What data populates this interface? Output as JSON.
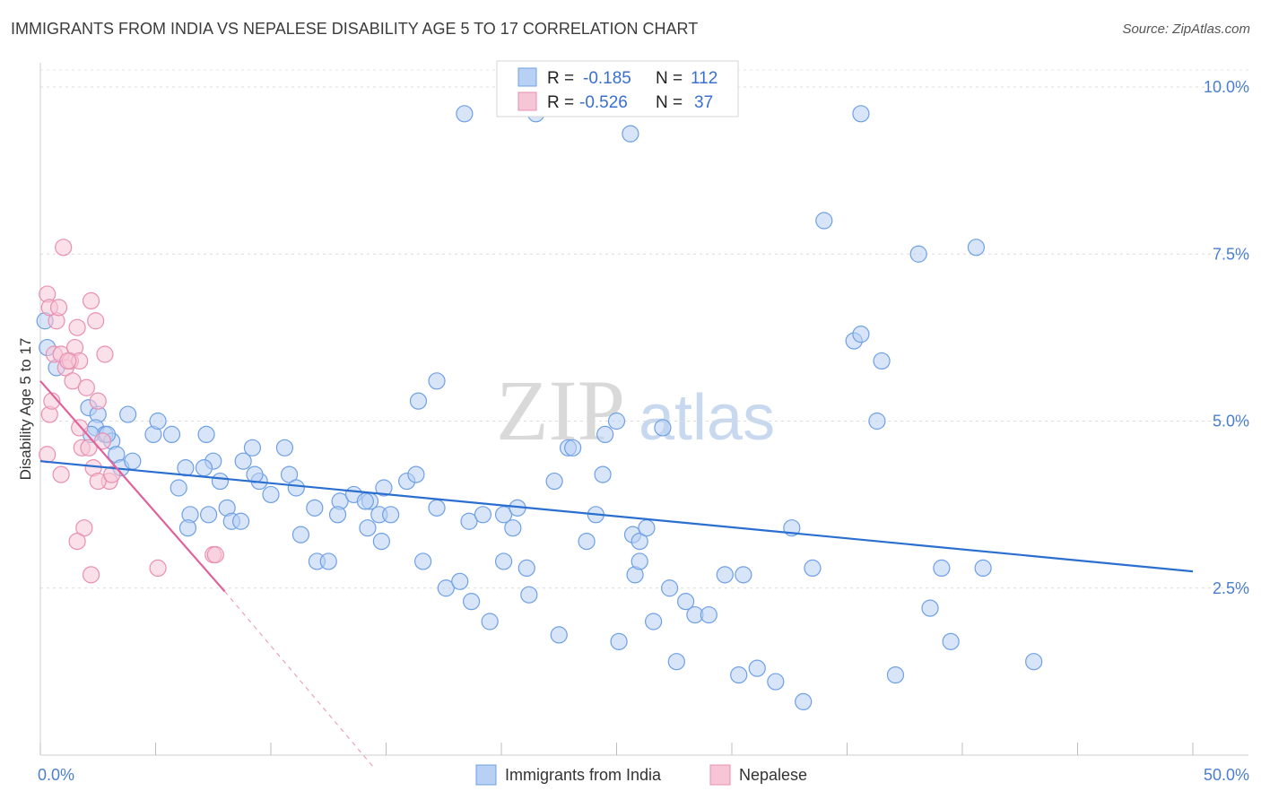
{
  "title": "IMMIGRANTS FROM INDIA VS NEPALESE DISABILITY AGE 5 TO 17 CORRELATION CHART",
  "source": "Source: ZipAtlas.com",
  "watermark": {
    "zip": "ZIP",
    "atlas": "atlas"
  },
  "chart_data": {
    "type": "scatter",
    "title": "IMMIGRANTS FROM INDIA VS NEPALESE DISABILITY AGE 5 TO 17 CORRELATION CHART",
    "xlabel": "",
    "ylabel": "Disability Age 5 to 17",
    "xlim": [
      0,
      50
    ],
    "ylim": [
      0,
      10.5
    ],
    "x_tick_labels": [
      "0.0%",
      "50.0%"
    ],
    "y_ticks": [
      2.5,
      5.0,
      7.5,
      10.0
    ],
    "y_tick_labels": [
      "2.5%",
      "5.0%",
      "7.5%",
      "10.0%"
    ],
    "legend": [
      {
        "r_label": "R =",
        "r_value": "-0.185",
        "n_label": "N =",
        "n_value": "112"
      },
      {
        "r_label": "R =",
        "r_value": "-0.526",
        "n_label": "N =",
        "n_value": "37"
      }
    ],
    "series": [
      {
        "name": "Immigrants from India",
        "color": "#6ea0e6",
        "fill": "#b8d0f4",
        "line_color": "#2a6fd0",
        "trend": {
          "x0": 0,
          "y0": 4.4,
          "x1": 50,
          "y1": 2.75
        },
        "points": [
          [
            0.2,
            6.5
          ],
          [
            0.3,
            6.1
          ],
          [
            0.7,
            5.8
          ],
          [
            2.1,
            5.2
          ],
          [
            2.5,
            5.1
          ],
          [
            2.4,
            4.9
          ],
          [
            2.8,
            4.8
          ],
          [
            3.1,
            4.7
          ],
          [
            2.9,
            4.8
          ],
          [
            2.2,
            4.8
          ],
          [
            3.3,
            4.5
          ],
          [
            3.5,
            4.3
          ],
          [
            4.0,
            4.4
          ],
          [
            4.9,
            4.8
          ],
          [
            5.1,
            5.0
          ],
          [
            3.8,
            5.1
          ],
          [
            5.7,
            4.8
          ],
          [
            6.0,
            4.0
          ],
          [
            6.5,
            3.6
          ],
          [
            6.3,
            4.3
          ],
          [
            7.2,
            4.8
          ],
          [
            7.3,
            3.6
          ],
          [
            6.4,
            3.4
          ],
          [
            7.5,
            4.4
          ],
          [
            7.8,
            4.1
          ],
          [
            7.1,
            4.3
          ],
          [
            8.1,
            3.7
          ],
          [
            8.3,
            3.5
          ],
          [
            8.8,
            4.4
          ],
          [
            8.7,
            3.5
          ],
          [
            9.2,
            4.6
          ],
          [
            9.5,
            4.1
          ],
          [
            9.3,
            4.2
          ],
          [
            10.0,
            3.9
          ],
          [
            10.6,
            4.6
          ],
          [
            10.8,
            4.2
          ],
          [
            11.1,
            4.0
          ],
          [
            11.3,
            3.3
          ],
          [
            11.9,
            3.7
          ],
          [
            12.0,
            2.9
          ],
          [
            12.5,
            2.9
          ],
          [
            13.0,
            3.8
          ],
          [
            12.9,
            3.6
          ],
          [
            13.6,
            3.9
          ],
          [
            14.3,
            3.8
          ],
          [
            14.1,
            3.8
          ],
          [
            14.7,
            3.6
          ],
          [
            14.2,
            3.4
          ],
          [
            14.8,
            3.2
          ],
          [
            14.9,
            4.0
          ],
          [
            15.2,
            3.6
          ],
          [
            15.9,
            4.1
          ],
          [
            16.3,
            4.2
          ],
          [
            16.6,
            2.9
          ],
          [
            17.2,
            3.7
          ],
          [
            17.2,
            5.6
          ],
          [
            17.6,
            2.5
          ],
          [
            18.6,
            3.5
          ],
          [
            18.2,
            2.6
          ],
          [
            18.7,
            2.3
          ],
          [
            19.2,
            3.6
          ],
          [
            19.5,
            2.0
          ],
          [
            20.1,
            3.6
          ],
          [
            20.1,
            2.9
          ],
          [
            20.5,
            3.4
          ],
          [
            20.7,
            3.7
          ],
          [
            21.1,
            2.8
          ],
          [
            21.2,
            2.4
          ],
          [
            22.3,
            4.1
          ],
          [
            22.5,
            1.8
          ],
          [
            22.9,
            4.6
          ],
          [
            23.1,
            4.6
          ],
          [
            23.7,
            3.2
          ],
          [
            24.4,
            4.2
          ],
          [
            24.5,
            4.8
          ],
          [
            24.1,
            3.6
          ],
          [
            25.0,
            5.0
          ],
          [
            25.1,
            1.7
          ],
          [
            25.7,
            3.3
          ],
          [
            26.0,
            3.2
          ],
          [
            25.8,
            2.7
          ],
          [
            26.0,
            2.9
          ],
          [
            26.3,
            3.4
          ],
          [
            26.6,
            2.0
          ],
          [
            27.3,
            2.5
          ],
          [
            27.6,
            1.4
          ],
          [
            28.0,
            2.3
          ],
          [
            28.4,
            2.1
          ],
          [
            29.0,
            2.1
          ],
          [
            29.7,
            2.7
          ],
          [
            30.5,
            2.7
          ],
          [
            30.3,
            1.2
          ],
          [
            31.1,
            1.3
          ],
          [
            31.9,
            1.1
          ],
          [
            32.6,
            3.4
          ],
          [
            33.1,
            0.8
          ],
          [
            33.5,
            2.8
          ],
          [
            35.6,
            9.6
          ],
          [
            35.3,
            6.2
          ],
          [
            35.6,
            6.3
          ],
          [
            36.3,
            5.0
          ],
          [
            36.5,
            5.9
          ],
          [
            37.1,
            1.2
          ],
          [
            38.1,
            7.5
          ],
          [
            38.6,
            2.2
          ],
          [
            39.1,
            2.8
          ],
          [
            39.5,
            1.7
          ],
          [
            40.6,
            7.6
          ],
          [
            40.9,
            2.8
          ],
          [
            43.1,
            1.4
          ],
          [
            18.4,
            9.6
          ],
          [
            21.5,
            9.6
          ],
          [
            25.6,
            9.3
          ],
          [
            34.0,
            8.0
          ],
          [
            27.0,
            4.9
          ],
          [
            16.4,
            5.3
          ]
        ]
      },
      {
        "name": "Nepalese",
        "color": "#ea8fb0",
        "fill": "#f6c6d7",
        "line_color": "#e0629a",
        "trend": {
          "x0": 0,
          "y0": 5.6,
          "x1": 8,
          "y1": 2.45
        },
        "trend_dashed": {
          "x0": 8,
          "y0": 2.45,
          "x1": 14.5,
          "y1": -0.2
        },
        "points": [
          [
            0.3,
            4.5
          ],
          [
            0.4,
            5.1
          ],
          [
            0.5,
            5.3
          ],
          [
            0.6,
            6.0
          ],
          [
            0.7,
            6.5
          ],
          [
            0.3,
            6.9
          ],
          [
            0.4,
            6.7
          ],
          [
            0.8,
            6.7
          ],
          [
            1.0,
            7.6
          ],
          [
            0.9,
            6.0
          ],
          [
            1.1,
            5.8
          ],
          [
            1.3,
            5.9
          ],
          [
            1.4,
            5.6
          ],
          [
            1.5,
            6.1
          ],
          [
            1.6,
            6.4
          ],
          [
            1.7,
            5.9
          ],
          [
            1.2,
            5.9
          ],
          [
            2.0,
            5.5
          ],
          [
            2.2,
            6.8
          ],
          [
            2.4,
            6.5
          ],
          [
            2.5,
            5.3
          ],
          [
            2.7,
            4.7
          ],
          [
            1.8,
            4.6
          ],
          [
            2.1,
            4.6
          ],
          [
            2.3,
            4.3
          ],
          [
            0.9,
            4.2
          ],
          [
            1.7,
            4.9
          ],
          [
            2.8,
            6.0
          ],
          [
            3.0,
            4.1
          ],
          [
            1.9,
            3.4
          ],
          [
            1.6,
            3.2
          ],
          [
            2.5,
            4.1
          ],
          [
            3.1,
            4.2
          ],
          [
            5.1,
            2.8
          ],
          [
            7.5,
            3.0
          ],
          [
            7.6,
            3.0
          ],
          [
            2.2,
            2.7
          ]
        ]
      }
    ]
  }
}
